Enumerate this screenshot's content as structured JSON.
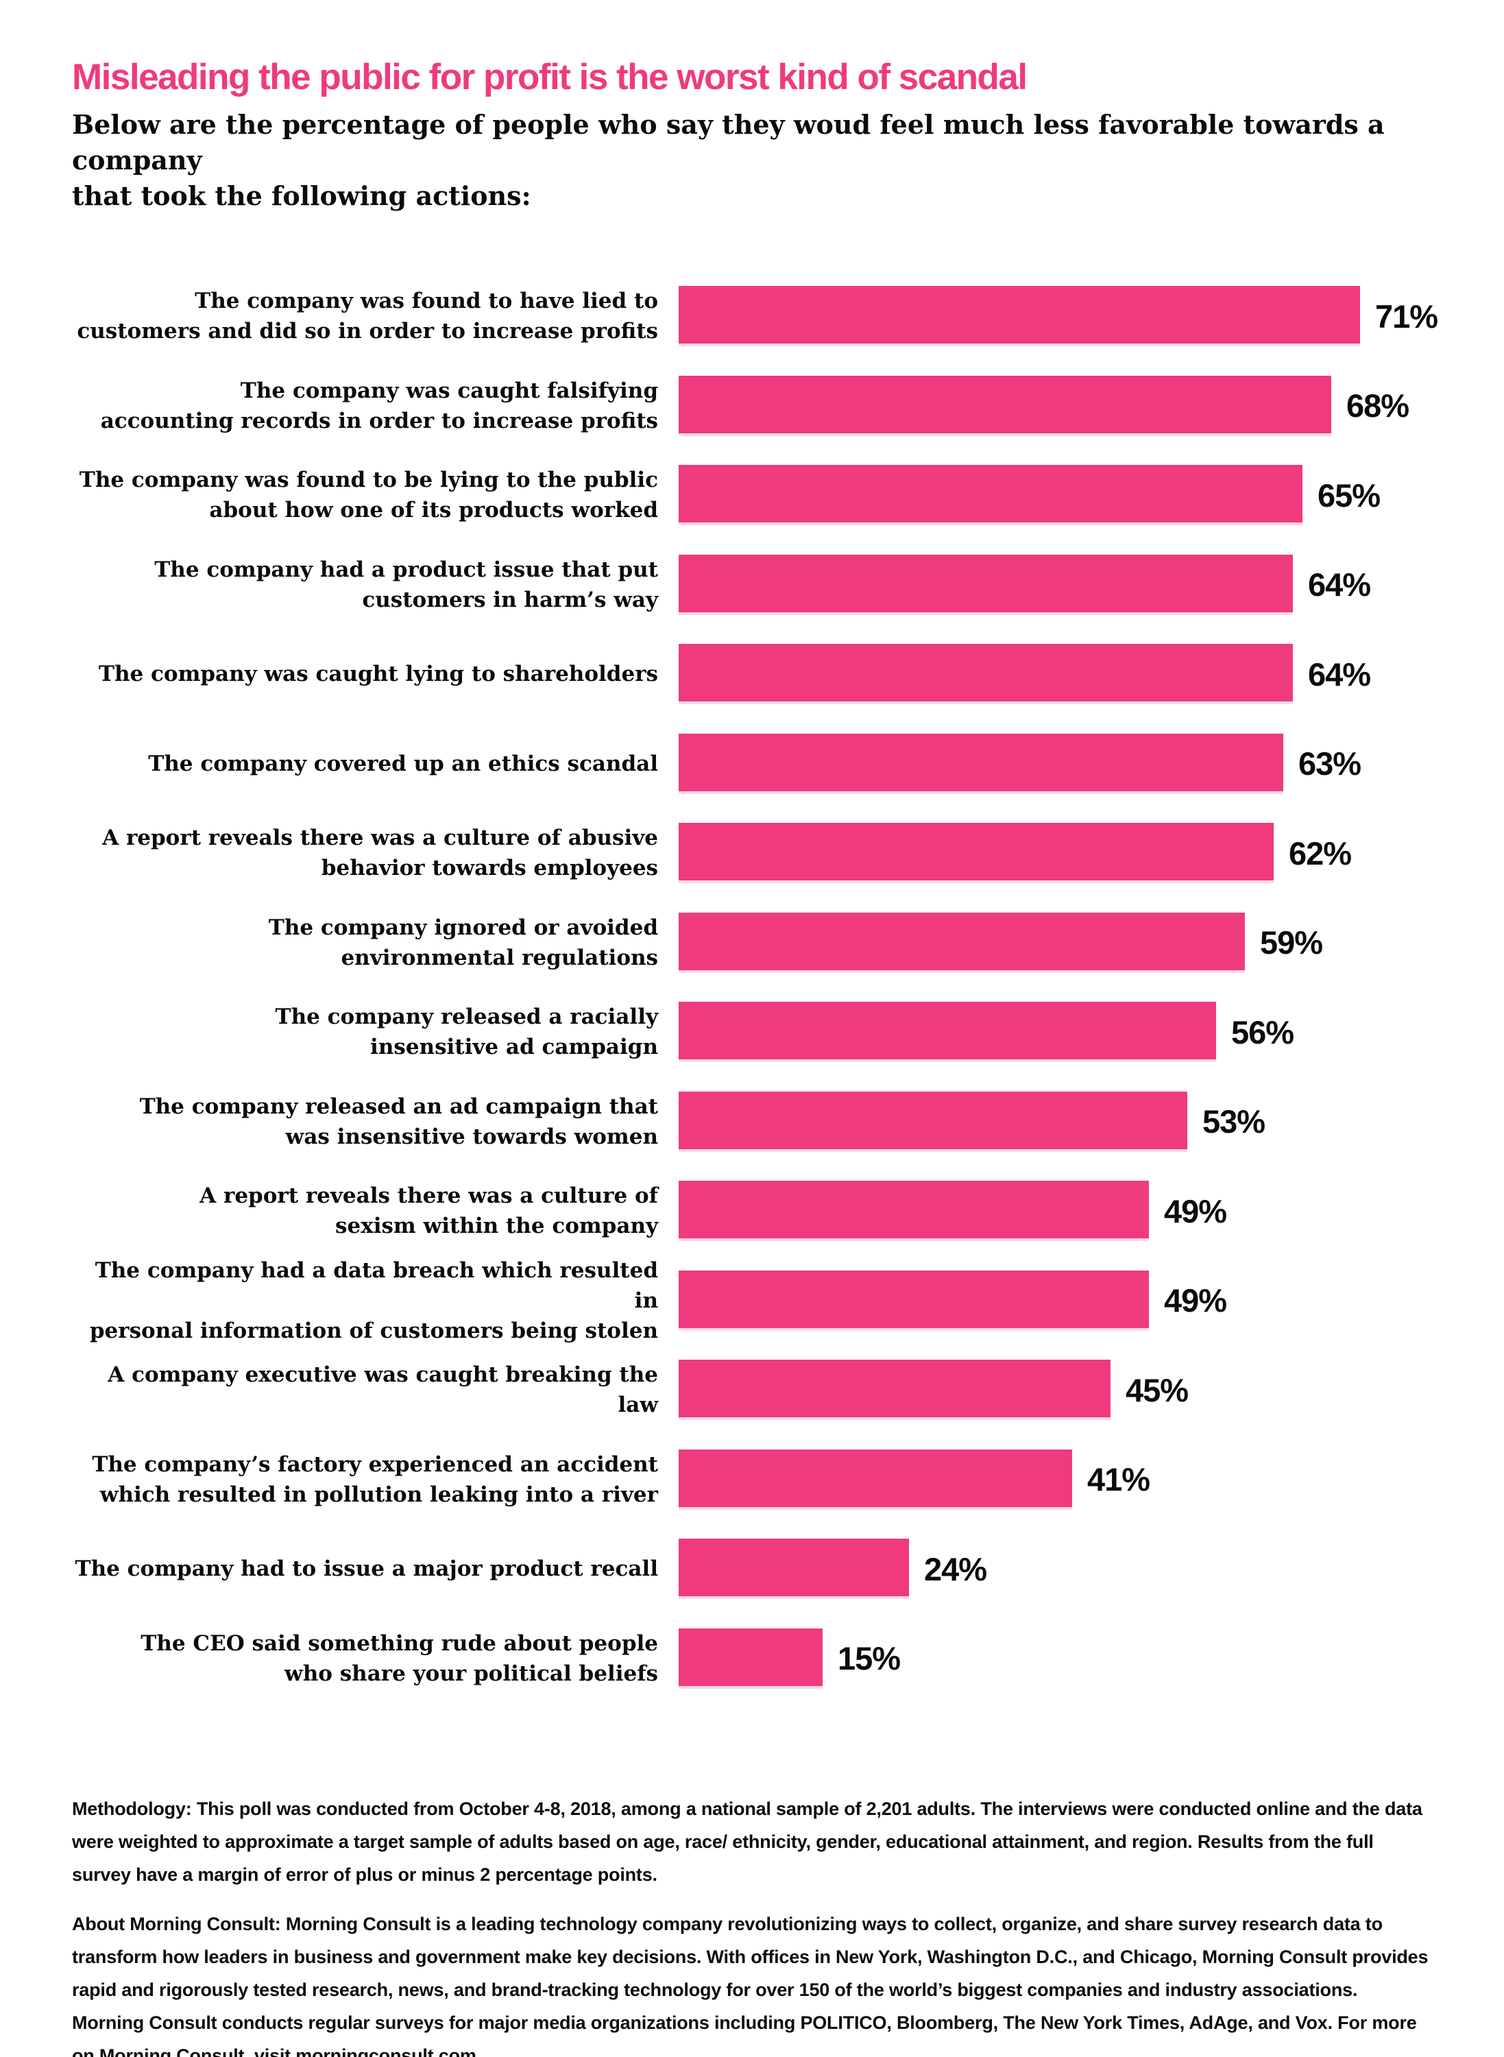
{
  "chart_data": {
    "type": "bar",
    "orientation": "horizontal",
    "title": "Misleading the public for profit is the worst kind of scandal",
    "subtitle": "Below are the percentage of people who say they woud feel much less favorable towards a company\nthat took the following actions:",
    "unit": "%",
    "xlim": [
      0,
      100
    ],
    "grid": false,
    "legend": false,
    "bar_color": "#ef3a7e",
    "categories": [
      "The company was found to have lied to\ncustomers and did so in order to increase profits",
      "The company was caught falsifying\naccounting records in order to increase profits",
      "The company was found to be lying to the public\nabout how one of its products worked",
      "The company had a product issue that put\ncustomers in harm’s way",
      "The company was caught lying to shareholders",
      "The company covered up an ethics scandal",
      "A report reveals there was a culture of abusive\nbehavior towards employees",
      "The company ignored or avoided\nenvironmental regulations",
      "The company released a racially\ninsensitive ad campaign",
      "The company released an ad campaign that\nwas insensitive towards women",
      "A report reveals there was a culture of\nsexism within the company",
      "The company had a data breach which resulted in\npersonal information of customers being stolen",
      "A company executive was caught breaking the law",
      "The company’s factory experienced an accident\nwhich resulted in pollution leaking into a river",
      "The company had to issue a major product recall",
      "The CEO said something rude about people\nwho share your political beliefs"
    ],
    "values": [
      71,
      68,
      65,
      64,
      64,
      63,
      62,
      59,
      56,
      53,
      49,
      49,
      45,
      41,
      24,
      15
    ],
    "value_labels": [
      "71%",
      "68%",
      "65%",
      "64%",
      "64%",
      "63%",
      "62%",
      "59%",
      "56%",
      "53%",
      "49%",
      "49%",
      "45%",
      "41%",
      "24%",
      "15%"
    ]
  },
  "footer": {
    "methodology": "Methodology: This poll was conducted from October 4-8, 2018, among a national sample of 2,201 adults. The interviews were conducted online and the data\nwere weighted to approximate a target sample of adults based on age, race/ ethnicity, gender, educational attainment, and region. Results from the full\nsurvey have a margin of error of plus or minus 2 percentage points.",
    "about": "About Morning Consult: Morning Consult is a leading technology company revolutionizing ways to collect, organize, and share survey research data to\ntransform how leaders in business and government make key decisions. With offices in New York, Washington D.C., and Chicago, Morning Consult provides\nrapid and rigorously tested research, news, and brand-tracking technology for over 150 of the world’s biggest companies and industry associations.\nMorning Consult conducts regular surveys for major media organizations including POLITICO, Bloomberg, The New York Times, AdAge, and Vox. For more\non Morning Consult, visit morningconsult.com."
  },
  "colors": {
    "accent": "#ef3a7e",
    "accent_light": "#fbd9e9",
    "text": "#0b0b0b"
  }
}
